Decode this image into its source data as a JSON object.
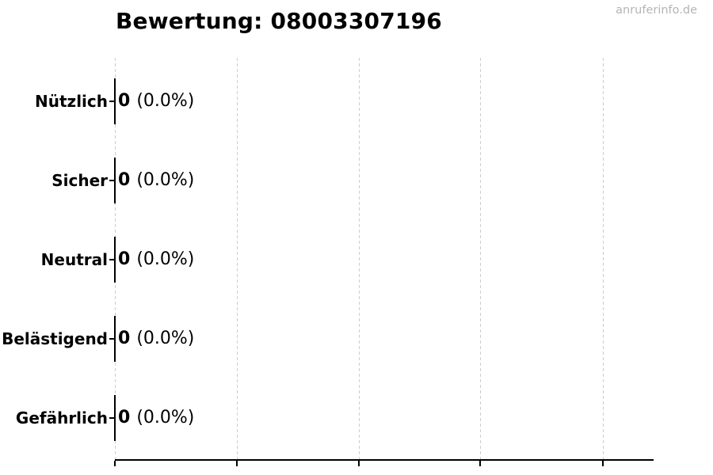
{
  "header": {
    "title": "Bewertung: 08003307196",
    "watermark": "anruferinfo.de"
  },
  "colors": {
    "background": "#ffffff",
    "text": "#000000",
    "bar_edge": "#000000",
    "axis": "#000000",
    "gridline": "#cdcdcd",
    "watermark": "#b4b4b4"
  },
  "chart_data": {
    "type": "bar",
    "orientation": "horizontal",
    "title": "Bewertung: 08003307196",
    "categories": [
      "Nützlich",
      "Sicher",
      "Neutral",
      "Belästigend",
      "Gefährlich"
    ],
    "values": [
      0,
      0,
      0,
      0,
      0
    ],
    "percent_labels": [
      "(0.0%)",
      "(0.0%)",
      "(0.0%)",
      "(0.0%)",
      "(0.0%)"
    ],
    "value_label_format": "count (percent)",
    "xlabel": "",
    "ylabel": "",
    "x_tick_labels": [],
    "x_tick_count": 5,
    "legend": false,
    "grid": "vertical-dashed",
    "bar_fill": "none",
    "bar_edge_color": "#000000"
  }
}
